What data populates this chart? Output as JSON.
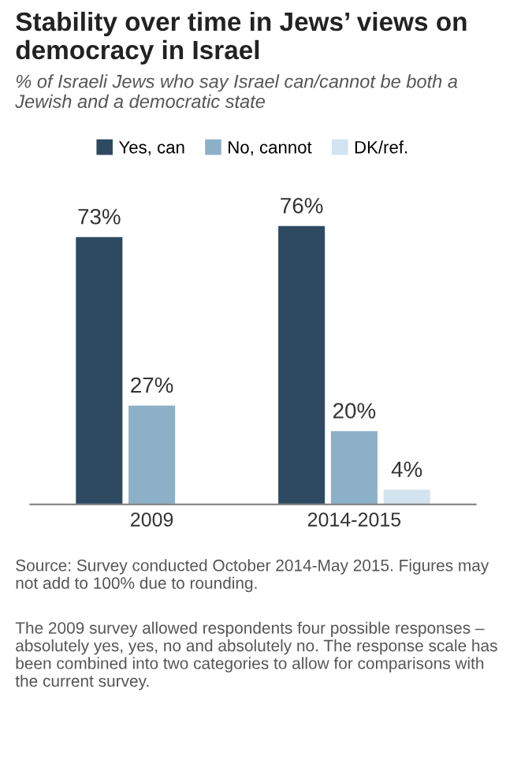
{
  "chart_data": {
    "type": "bar",
    "title": "Stability over time in Jews’ views on democracy in Israel",
    "subtitle": "% of Israeli Jews who say Israel can/cannot be both a Jewish and a democratic state",
    "categories": [
      "2009",
      "2014-2015"
    ],
    "series": [
      {
        "name": "Yes, can",
        "color": "#2e4a62",
        "values": [
          73,
          76
        ],
        "value_labels": [
          "73%",
          "76%"
        ]
      },
      {
        "name": "No, cannot",
        "color": "#8db0c9",
        "values": [
          27,
          20
        ],
        "value_labels": [
          "27%",
          "20%"
        ]
      },
      {
        "name": "DK/ref.",
        "color": "#d3e3ef",
        "values": [
          null,
          4
        ],
        "value_labels": [
          null,
          "4%"
        ]
      }
    ],
    "legend": "top",
    "grid": false,
    "tick_labels": "x",
    "annotations": [
      "Source: Survey conducted October 2014-May 2015. Figures may not add to 100% due to rounding.",
      "The 2009 survey allowed respondents four possible responses – absolutely yes, yes, no and absolutely no. The response scale has been combined into two categories to allow for comparisons with the current survey."
    ]
  }
}
